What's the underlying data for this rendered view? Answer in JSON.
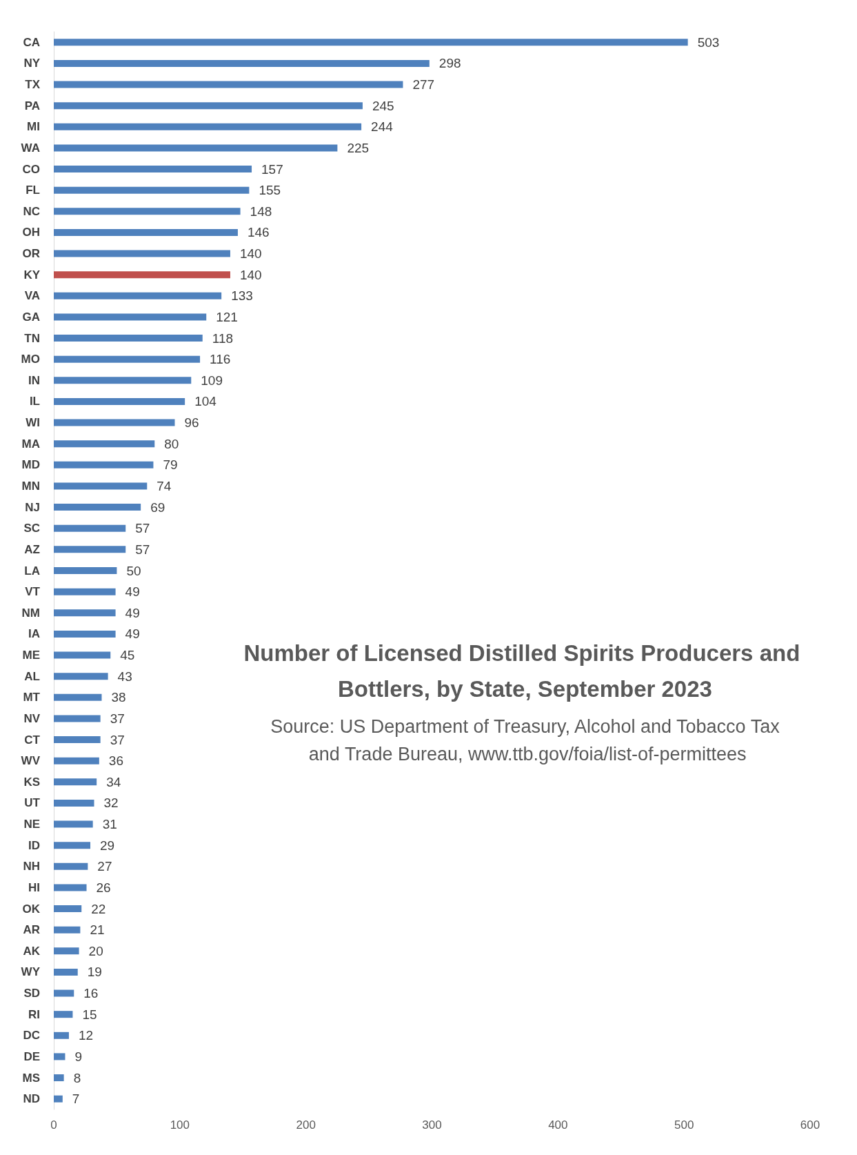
{
  "chart_data": {
    "type": "bar",
    "orientation": "horizontal",
    "title": "Number of Licensed Distilled Spirits Producers and Bottlers, by State, September 2023",
    "subtitle": "Source: US Department of Treasury, Alcohol and Tobacco Tax and Trade Bureau, www.ttb.gov/foia/list-of-permittees",
    "categories": [
      "CA",
      "NY",
      "TX",
      "PA",
      "MI",
      "WA",
      "CO",
      "FL",
      "NC",
      "OH",
      "OR",
      "KY",
      "VA",
      "GA",
      "TN",
      "MO",
      "IN",
      "IL",
      "WI",
      "MA",
      "MD",
      "MN",
      "NJ",
      "SC",
      "AZ",
      "LA",
      "VT",
      "NM",
      "IA",
      "ME",
      "AL",
      "MT",
      "NV",
      "CT",
      "WV",
      "KS",
      "UT",
      "NE",
      "ID",
      "NH",
      "HI",
      "OK",
      "AR",
      "AK",
      "WY",
      "SD",
      "RI",
      "DC",
      "DE",
      "MS",
      "ND"
    ],
    "values": [
      503,
      298,
      277,
      245,
      244,
      225,
      157,
      155,
      148,
      146,
      140,
      140,
      133,
      121,
      118,
      116,
      109,
      104,
      96,
      80,
      79,
      74,
      69,
      57,
      57,
      50,
      49,
      49,
      49,
      45,
      43,
      38,
      37,
      37,
      36,
      34,
      32,
      31,
      29,
      27,
      26,
      22,
      21,
      20,
      19,
      16,
      15,
      12,
      9,
      8,
      7
    ],
    "colors": [
      "#4f81bd",
      "#4f81bd",
      "#4f81bd",
      "#4f81bd",
      "#4f81bd",
      "#4f81bd",
      "#4f81bd",
      "#4f81bd",
      "#4f81bd",
      "#4f81bd",
      "#4f81bd",
      "#c0504d",
      "#4f81bd",
      "#4f81bd",
      "#4f81bd",
      "#4f81bd",
      "#4f81bd",
      "#4f81bd",
      "#4f81bd",
      "#4f81bd",
      "#4f81bd",
      "#4f81bd",
      "#4f81bd",
      "#4f81bd",
      "#4f81bd",
      "#4f81bd",
      "#4f81bd",
      "#4f81bd",
      "#4f81bd",
      "#4f81bd",
      "#4f81bd",
      "#4f81bd",
      "#4f81bd",
      "#4f81bd",
      "#4f81bd",
      "#4f81bd",
      "#4f81bd",
      "#4f81bd",
      "#4f81bd",
      "#4f81bd",
      "#4f81bd",
      "#4f81bd",
      "#4f81bd",
      "#4f81bd",
      "#4f81bd",
      "#4f81bd",
      "#4f81bd",
      "#4f81bd",
      "#4f81bd",
      "#4f81bd",
      "#4f81bd"
    ],
    "xlim": [
      0,
      600
    ],
    "xticks": [
      0,
      100,
      200,
      300,
      400,
      500,
      600
    ],
    "data_labels": true,
    "grid": false
  }
}
